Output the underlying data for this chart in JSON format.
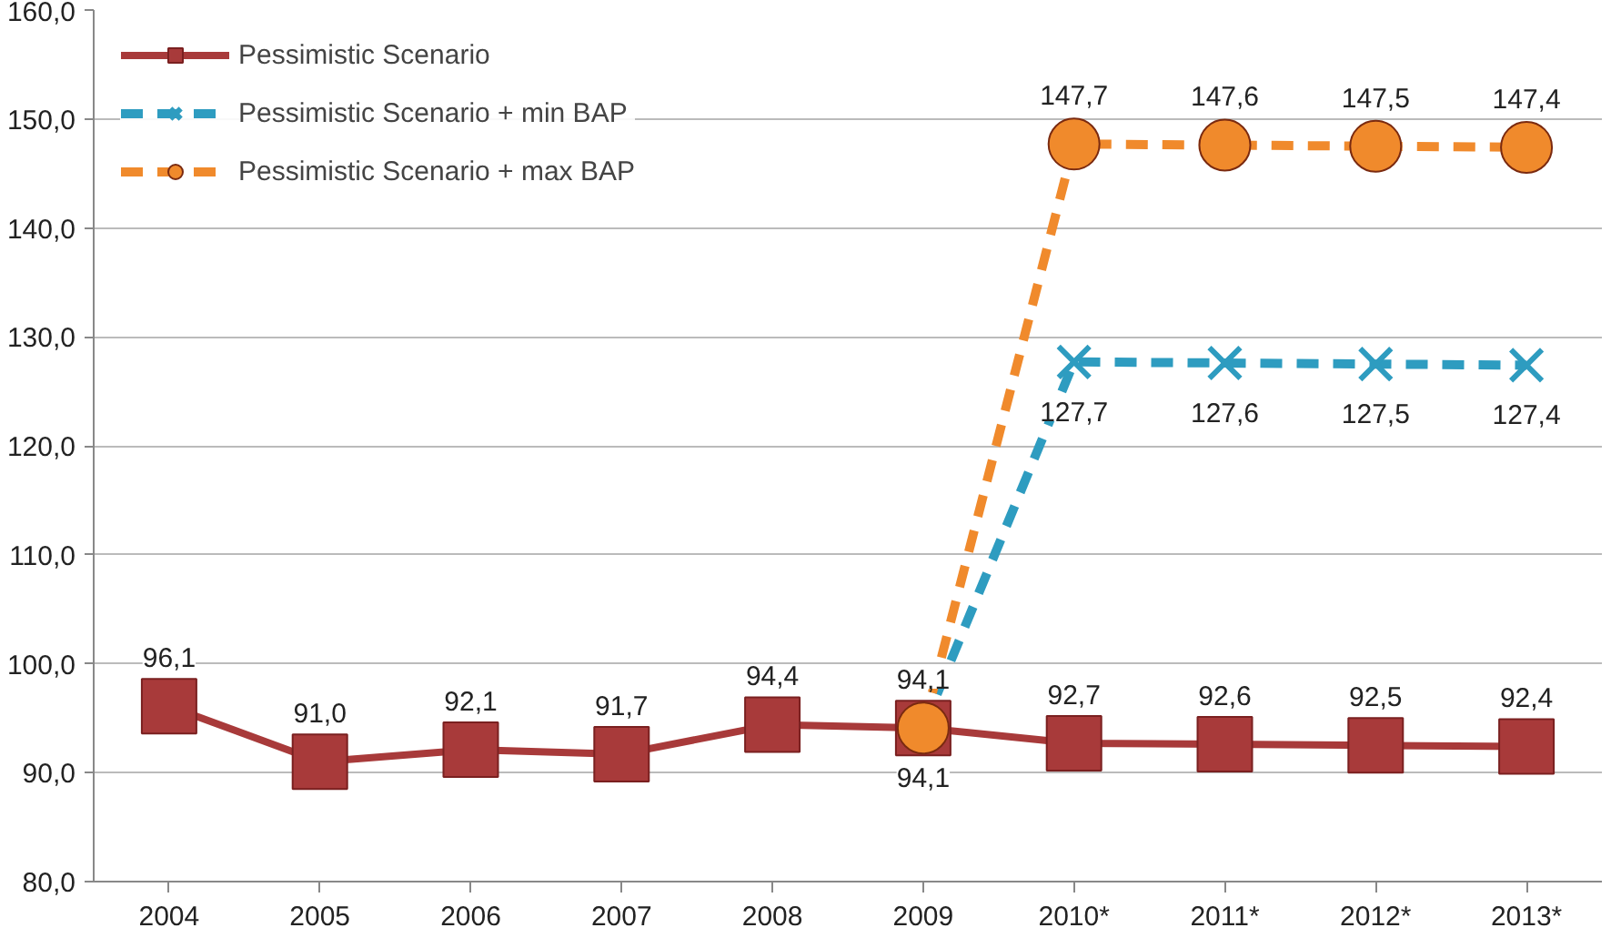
{
  "chart_data": {
    "type": "line",
    "categories": [
      "2004",
      "2005",
      "2006",
      "2007",
      "2008",
      "2009",
      "2010*",
      "2011*",
      "2012*",
      "2013*"
    ],
    "series": [
      {
        "name": "Pessimistic Scenario",
        "color": "#a83a3a",
        "marker": "square",
        "line_style": "solid",
        "values": [
          96.1,
          91.0,
          92.1,
          91.7,
          94.4,
          94.1,
          92.7,
          92.6,
          92.5,
          92.4
        ],
        "value_labels": [
          "96,1",
          "91,0",
          "92,1",
          "91,7",
          "94,4",
          "94,1",
          "92,7",
          "92,6",
          "92,5",
          "92,4"
        ]
      },
      {
        "name": "Pessimistic Scenario + min BAP",
        "color": "#2e9cc0",
        "marker": "cross",
        "line_style": "dashed",
        "values": [
          null,
          null,
          null,
          null,
          null,
          94.1,
          127.7,
          127.6,
          127.5,
          127.4
        ],
        "value_labels": [
          null,
          null,
          null,
          null,
          null,
          "94,1",
          "127,7",
          "127,6",
          "127,5",
          "127,4"
        ]
      },
      {
        "name": "Pessimistic Scenario + max BAP",
        "color": "#f08a2c",
        "marker": "circle",
        "line_style": "dashed",
        "values": [
          null,
          null,
          null,
          null,
          null,
          94.1,
          147.7,
          147.6,
          147.5,
          147.4
        ],
        "value_labels": [
          null,
          null,
          null,
          null,
          null,
          null,
          "147,7",
          "147,6",
          "147,5",
          "147,4"
        ]
      }
    ],
    "ylim": [
      80,
      160
    ],
    "yticks": [
      {
        "value": 80,
        "label": "80,0"
      },
      {
        "value": 90,
        "label": "90,0"
      },
      {
        "value": 100,
        "label": "100,0"
      },
      {
        "value": 110,
        "label": "110,0"
      },
      {
        "value": 120,
        "label": "120,0"
      },
      {
        "value": 130,
        "label": "130,0"
      },
      {
        "value": 140,
        "label": "140,0"
      },
      {
        "value": 150,
        "label": "150,0"
      },
      {
        "value": 160,
        "label": "160,0"
      }
    ],
    "grid": "y",
    "legend": "top left"
  }
}
